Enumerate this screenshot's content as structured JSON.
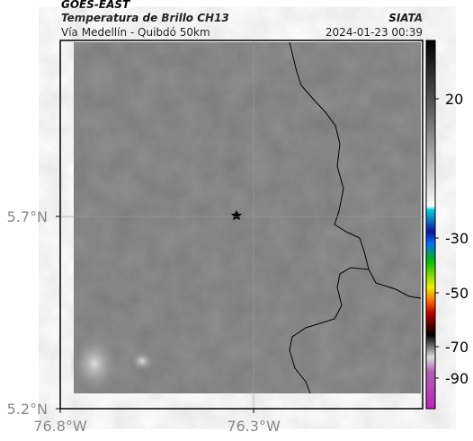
{
  "header": {
    "source": "GOES-EAST",
    "title": "Temperatura de Brillo CH13",
    "agency": "SIATA",
    "subtitle": "Vía Medellín - Quibdó 50km",
    "timestamp": "2024-01-23 00:39"
  },
  "map": {
    "lonlim": [
      -76.8,
      -75.863
    ],
    "latlim": [
      5.2,
      6.158
    ],
    "lat_ticks": [
      {
        "value": 5.7,
        "label": "5.7°N"
      },
      {
        "value": 5.2,
        "label": "5.2°N"
      }
    ],
    "lon_ticks": [
      {
        "value": -76.8,
        "label": "76.8°W"
      },
      {
        "value": -76.3,
        "label": "76.3°W"
      }
    ]
  },
  "colorbar": {
    "ticks": [
      20,
      -30,
      -50,
      -70,
      -90
    ]
  }
}
